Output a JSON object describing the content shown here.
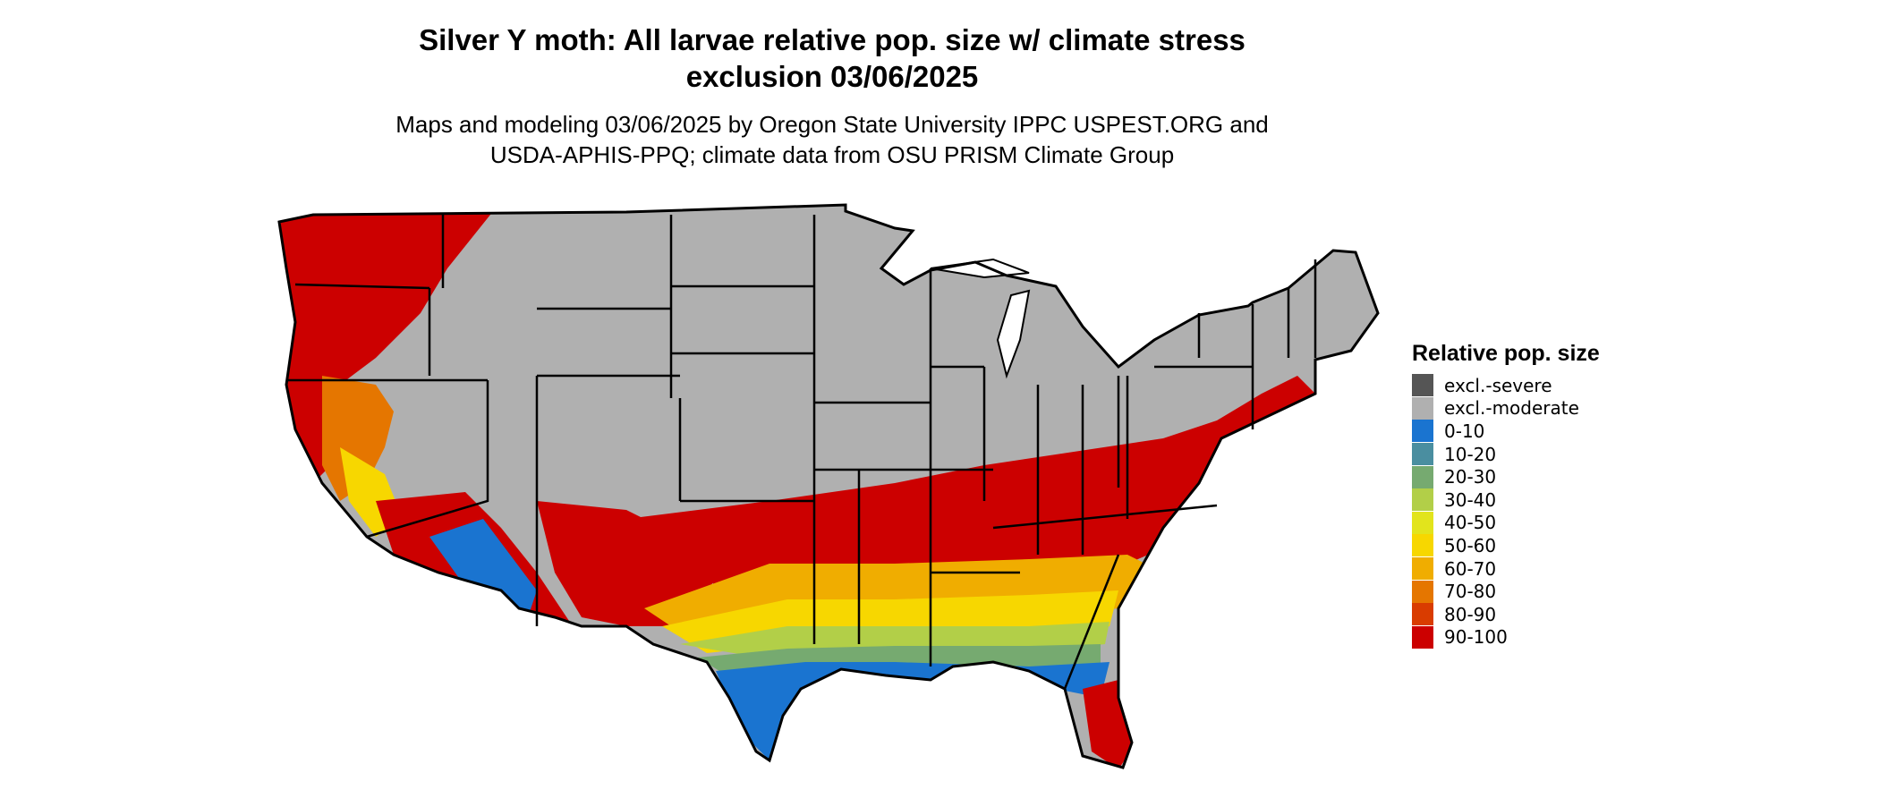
{
  "title_line1": "Silver Y moth: All larvae relative pop. size w/ climate stress",
  "title_line2": "exclusion 03/06/2025",
  "subtitle_line1": "Maps and modeling 03/06/2025 by Oregon State University IPPC USPEST.ORG and",
  "subtitle_line2": "USDA-APHIS-PPQ; climate data from OSU PRISM Climate Group",
  "legend": {
    "title": "Relative pop. size",
    "items": [
      {
        "label": "excl.-severe",
        "color": "#555555"
      },
      {
        "label": "excl.-moderate",
        "color": "#b0b0b0"
      },
      {
        "label": "0-10",
        "color": "#1a74d0"
      },
      {
        "label": "10-20",
        "color": "#4a8ea0"
      },
      {
        "label": "20-30",
        "color": "#76aa70"
      },
      {
        "label": "30-40",
        "color": "#b2cf48"
      },
      {
        "label": "40-50",
        "color": "#e2e41c"
      },
      {
        "label": "50-60",
        "color": "#f7d700"
      },
      {
        "label": "60-70",
        "color": "#f0ad00"
      },
      {
        "label": "70-80",
        "color": "#e57600"
      },
      {
        "label": "80-90",
        "color": "#d93c00"
      },
      {
        "label": "90-100",
        "color": "#cc0000"
      }
    ]
  }
}
